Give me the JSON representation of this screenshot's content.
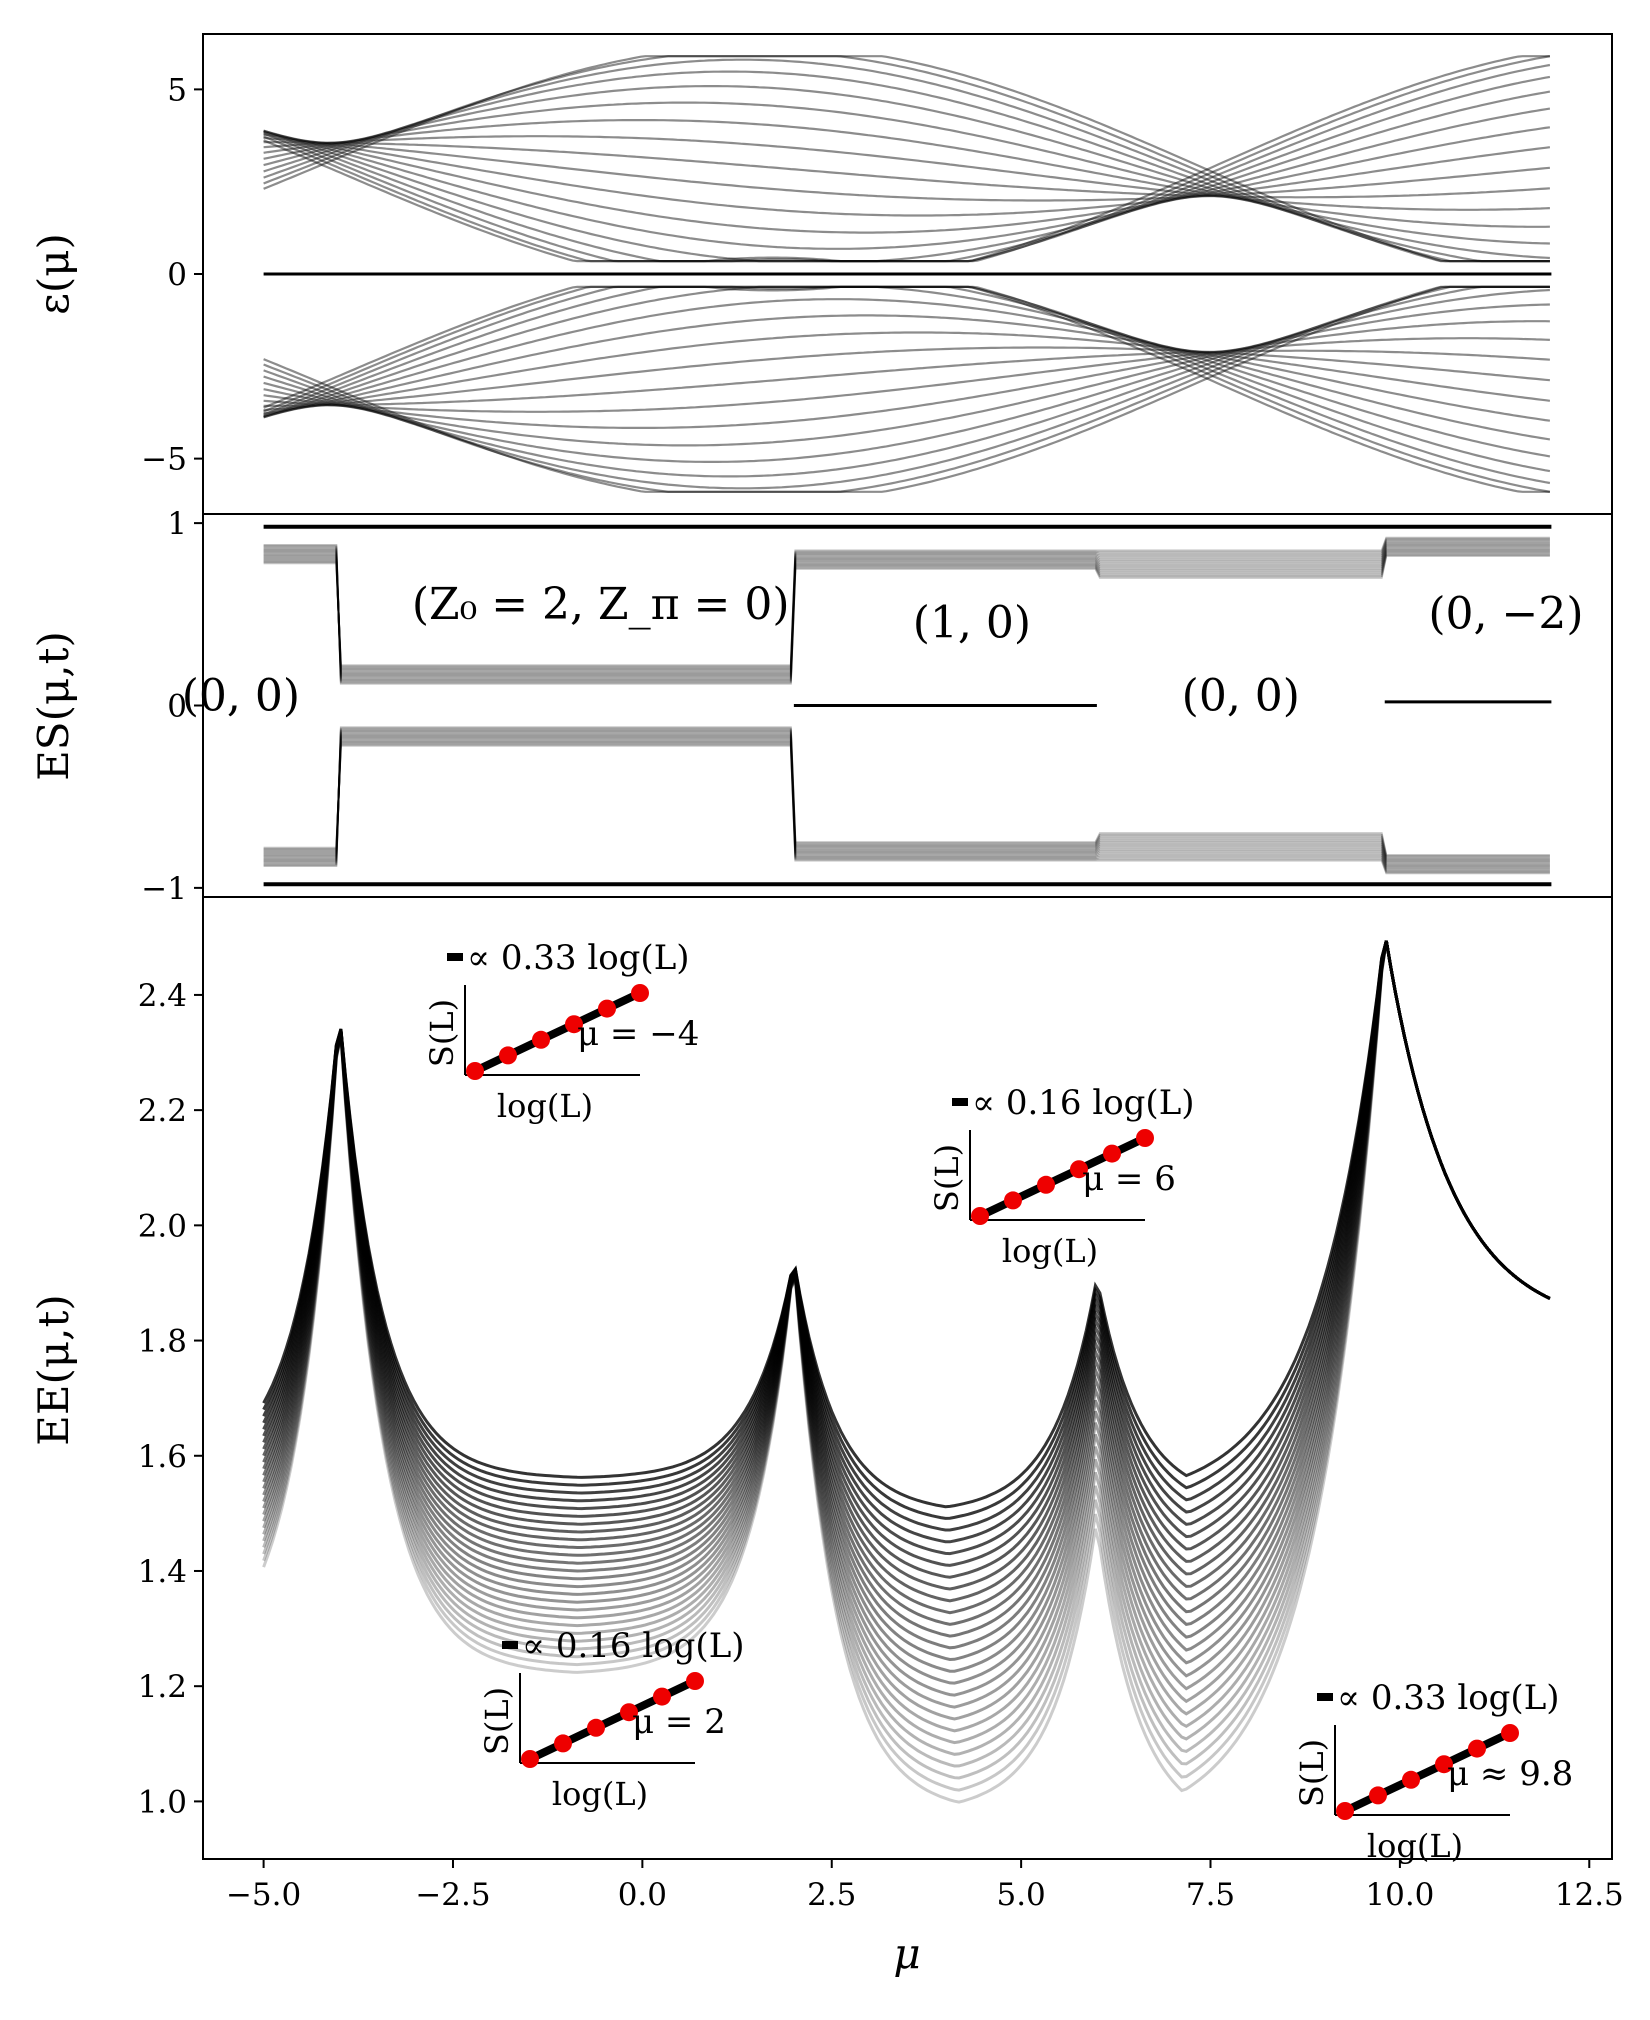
{
  "chart_data": [
    {
      "panel": "top",
      "type": "line",
      "ylabel": "ε(μ)",
      "xlim": [
        -5.8,
        12.8
      ],
      "ylim": [
        -6.5,
        6.5
      ],
      "yticks": [
        {
          "value": 5,
          "label": "5"
        },
        {
          "value": 0,
          "label": "0"
        },
        {
          "value": -5,
          "label": "−5"
        }
      ],
      "series_description": "bundle of band energies symmetric about zero with a flat zero mode",
      "zero_mode": 0
    },
    {
      "panel": "middle",
      "type": "line",
      "ylabel": "ES(μ,t)",
      "xlim": [
        -5.8,
        12.8
      ],
      "ylim": [
        -1.05,
        1.05
      ],
      "yticks": [
        {
          "value": 1,
          "label": "1"
        },
        {
          "value": 0,
          "label": "0"
        },
        {
          "value": -1,
          "label": "−1"
        }
      ],
      "phase_labels": [
        {
          "text": "(0, 0)",
          "x": -5.3,
          "y": 0.05
        },
        {
          "text": "(Z₀ = 2, Z_π = 0)",
          "x": -0.55,
          "y": 0.55
        },
        {
          "text": "(1, 0)",
          "x": 4.35,
          "y": 0.45
        },
        {
          "text": "(0, 0)",
          "x": 7.9,
          "y": 0.05
        },
        {
          "text": "(0, −2)",
          "x": 11.4,
          "y": 0.5
        }
      ],
      "phase_boundaries": [
        -4,
        2,
        6,
        9.8
      ]
    },
    {
      "panel": "bottom",
      "type": "line",
      "xlabel": "μ",
      "ylabel": "EE(μ,t)",
      "xlim": [
        -5.8,
        12.8
      ],
      "ylim": [
        0.9,
        2.57
      ],
      "xticks": [
        {
          "value": -5.0,
          "label": "−5.0"
        },
        {
          "value": -2.5,
          "label": "−2.5"
        },
        {
          "value": 0.0,
          "label": "0.0"
        },
        {
          "value": 2.5,
          "label": "2.5"
        },
        {
          "value": 5.0,
          "label": "5.0"
        },
        {
          "value": 7.5,
          "label": "7.5"
        },
        {
          "value": 10.0,
          "label": "10.0"
        },
        {
          "value": 12.5,
          "label": "12.5"
        }
      ],
      "yticks": [
        {
          "value": 1.0,
          "label": "1.0"
        },
        {
          "value": 1.2,
          "label": "1.2"
        },
        {
          "value": 1.4,
          "label": "1.4"
        },
        {
          "value": 1.6,
          "label": "1.6"
        },
        {
          "value": 1.8,
          "label": "1.8"
        },
        {
          "value": 2.0,
          "label": "2.0"
        },
        {
          "value": 2.2,
          "label": "2.2"
        },
        {
          "value": 2.4,
          "label": "2.4"
        }
      ],
      "peaks": [
        {
          "mu": -4,
          "ee": 2.37
        },
        {
          "mu": 2,
          "ee": 1.94
        },
        {
          "mu": 6,
          "ee": 1.91
        },
        {
          "mu": 9.8,
          "ee": 2.51
        }
      ],
      "insets": [
        {
          "slope_label": "∝ 0.33 log(L)",
          "mu_label": "μ = −4",
          "ylabel": "S(L)",
          "xlabel": "log(L)",
          "points": [
            0,
            1,
            2,
            3,
            4,
            5
          ],
          "values": [
            0,
            0.33,
            0.66,
            0.99,
            1.32,
            1.65
          ]
        },
        {
          "slope_label": "∝ 0.16 log(L)",
          "mu_label": "μ = 6",
          "ylabel": "S(L)",
          "xlabel": "log(L)",
          "points": [
            0,
            1,
            2,
            3,
            4,
            5
          ],
          "values": [
            0,
            0.16,
            0.32,
            0.48,
            0.64,
            0.8
          ]
        },
        {
          "slope_label": "∝ 0.16 log(L)",
          "mu_label": "μ = 2",
          "ylabel": "S(L)",
          "xlabel": "log(L)",
          "points": [
            0,
            1,
            2,
            3,
            4,
            5
          ],
          "values": [
            0,
            0.16,
            0.32,
            0.48,
            0.64,
            0.8
          ]
        },
        {
          "slope_label": "∝ 0.33 log(L)",
          "mu_label": "μ ≈ 9.8",
          "ylabel": "S(L)",
          "xlabel": "log(L)",
          "points": [
            0,
            1,
            2,
            3,
            4,
            5
          ],
          "values": [
            0,
            0.33,
            0.66,
            0.99,
            1.32,
            1.65
          ]
        }
      ]
    }
  ],
  "colors": {
    "curve": "#000000",
    "marker": "#ee0000"
  }
}
